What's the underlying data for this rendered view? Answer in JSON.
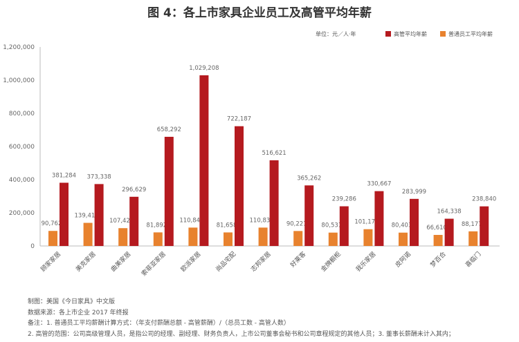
{
  "chart_data": {
    "type": "bar",
    "title": "图 4：各上市家具企业员工及高管平均年薪",
    "unit": "单位：元／人·年",
    "categories": [
      "顾家家居",
      "美克家居",
      "曲美家居",
      "索菲亚家居",
      "欧派家居",
      "尚品宅配",
      "志邦家居",
      "好莱客",
      "金牌橱柜",
      "我乐家居",
      "皮阿诺",
      "梦百合",
      "喜临门"
    ],
    "series": [
      {
        "name": "普通员工平均年薪",
        "color": "#e8822e",
        "values": [
          90762,
          139410,
          107424,
          81892,
          110840,
          81658,
          110835,
          90221,
          80531,
          101173,
          80403,
          66610,
          88177
        ]
      },
      {
        "name": "高管平均年薪",
        "color": "#b51a1f",
        "values": [
          381284,
          373338,
          296629,
          658292,
          1029208,
          722187,
          516621,
          365262,
          239286,
          330667,
          283999,
          164338,
          238840
        ]
      }
    ],
    "ylim": [
      0,
      1200000
    ],
    "yticks": [
      "0",
      "200,000",
      "400,000",
      "600,000",
      "800,000",
      "1,000,000",
      "1,200,000"
    ],
    "grid": false,
    "legend": "top-right"
  },
  "notes": [
    "制图：美国《今日家具》中文版",
    "数据来源：各上市企业 2017 年终报",
    "备注：1. 普通员工平均薪酬计算方式：（年支付薪酬总额 - 高管薪酬）/（总员工数 - 高管人数）",
    "2. 高管的范围：公司高级管理人员，是指公司的经理、副经理、财务负责人，上市公司董事会秘书和公司章程规定的其他人员；3. 董事长薪酬未计入其内；"
  ]
}
